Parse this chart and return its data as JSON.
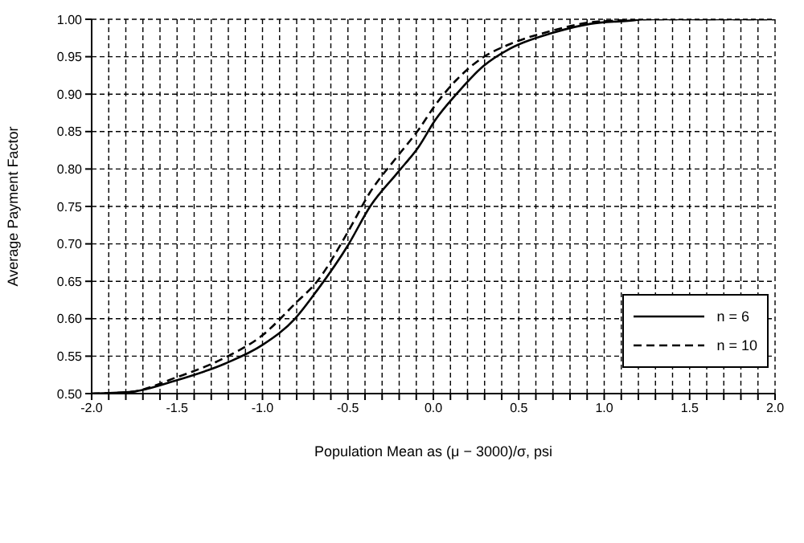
{
  "chart_data": {
    "type": "line",
    "xlabel": "Population Mean as (μ − 3000)/σ, psi",
    "ylabel": "Average Payment Factor",
    "xlim": [
      -2,
      2
    ],
    "xticks": [
      {
        "value": -2,
        "label": "-2.0"
      },
      {
        "value": -1.9,
        "label": null
      },
      {
        "value": -1.8,
        "label": null
      },
      {
        "value": -1.7,
        "label": null
      },
      {
        "value": -1.6,
        "label": null
      },
      {
        "value": -1.5,
        "label": "-1.5"
      },
      {
        "value": -1.4,
        "label": null
      },
      {
        "value": -1.3,
        "label": null
      },
      {
        "value": -1.2,
        "label": null
      },
      {
        "value": -1.1,
        "label": null
      },
      {
        "value": -1,
        "label": "-1.0"
      },
      {
        "value": -0.9,
        "label": null
      },
      {
        "value": -0.8,
        "label": null
      },
      {
        "value": -0.7,
        "label": null
      },
      {
        "value": -0.6,
        "label": null
      },
      {
        "value": -0.5,
        "label": "-0.5"
      },
      {
        "value": -0.4,
        "label": null
      },
      {
        "value": -0.3,
        "label": null
      },
      {
        "value": -0.2,
        "label": null
      },
      {
        "value": -0.1,
        "label": null
      },
      {
        "value": 0,
        "label": "0.0"
      },
      {
        "value": 0.1,
        "label": null
      },
      {
        "value": 0.2,
        "label": null
      },
      {
        "value": 0.3,
        "label": null
      },
      {
        "value": 0.4,
        "label": null
      },
      {
        "value": 0.5,
        "label": "0.5"
      },
      {
        "value": 0.6,
        "label": null
      },
      {
        "value": 0.7,
        "label": null
      },
      {
        "value": 0.8,
        "label": null
      },
      {
        "value": 0.9,
        "label": null
      },
      {
        "value": 1,
        "label": "1.0"
      },
      {
        "value": 1.1,
        "label": null
      },
      {
        "value": 1.2,
        "label": null
      },
      {
        "value": 1.3,
        "label": null
      },
      {
        "value": 1.4,
        "label": null
      },
      {
        "value": 1.5,
        "label": "1.5"
      },
      {
        "value": 1.6,
        "label": null
      },
      {
        "value": 1.7,
        "label": null
      },
      {
        "value": 1.8,
        "label": null
      },
      {
        "value": 1.9,
        "label": null
      },
      {
        "value": 2,
        "label": "2.0"
      }
    ],
    "ylim": [
      0.5,
      1
    ],
    "yticks": [
      {
        "value": 0.5,
        "label": "0.50"
      },
      {
        "value": 0.55,
        "label": "0.55"
      },
      {
        "value": 0.6,
        "label": "0.60"
      },
      {
        "value": 0.65,
        "label": "0.65"
      },
      {
        "value": 0.7,
        "label": "0.70"
      },
      {
        "value": 0.75,
        "label": "0.75"
      },
      {
        "value": 0.8,
        "label": "0.80"
      },
      {
        "value": 0.85,
        "label": "0.85"
      },
      {
        "value": 0.9,
        "label": "0.90"
      },
      {
        "value": 0.95,
        "label": "0.95"
      },
      {
        "value": 1,
        "label": "1.00"
      }
    ],
    "grid": true,
    "legend": "right",
    "marker": "none",
    "series": [
      {
        "name": "n = 6",
        "color": "#000000",
        "line_style": "solid",
        "x": [
          -2,
          -1.78,
          -1.5,
          -1.22,
          -1,
          -0.81,
          -0.68,
          -0.5,
          -0.37,
          -0.21,
          -0.085,
          0.01,
          0.135,
          0.29,
          0.45,
          0.7,
          0.92,
          1.14,
          1.25,
          2
        ],
        "values": [
          0.5,
          0.502,
          0.518,
          0.54,
          0.565,
          0.6,
          0.638,
          0.698,
          0.75,
          0.795,
          0.83,
          0.865,
          0.9,
          0.937,
          0.961,
          0.982,
          0.994,
          0.998,
          1,
          1
        ]
      },
      {
        "name": "n = 10",
        "color": "#000000",
        "line_style": "dashed",
        "x": [
          -2,
          -1.78,
          -1.5,
          -1.22,
          -1,
          -0.81,
          -0.68,
          -0.5,
          -0.37,
          -0.21,
          -0.085,
          0.01,
          0.135,
          0.29,
          0.45,
          0.7,
          0.92,
          1.14,
          1.25,
          2
        ],
        "values": [
          0.5,
          0.502,
          0.522,
          0.548,
          0.578,
          0.62,
          0.65,
          0.716,
          0.769,
          0.817,
          0.853,
          0.885,
          0.919,
          0.949,
          0.967,
          0.985,
          0.996,
          0.999,
          1,
          1
        ]
      }
    ]
  }
}
